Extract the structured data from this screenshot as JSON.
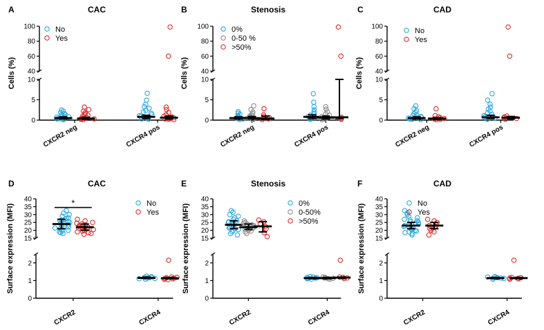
{
  "chart_data": [
    {
      "type": "scatter",
      "panel_letter": "A",
      "title": "CAC",
      "ylabel": "Cells  (%)",
      "categories": [
        "CXCR2 neg",
        "CXCR4 pos"
      ],
      "y_break": {
        "lower": [
          0,
          10
        ],
        "upper": [
          40,
          100
        ]
      },
      "lower_ticks": [
        "0",
        "5",
        "10"
      ],
      "upper_ticks": [
        "40",
        "60",
        "80",
        "100"
      ],
      "series": [
        {
          "name": "No",
          "color": "#29a8e0",
          "values": [
            [
              0.1,
              0.2,
              0.3,
              0.4,
              0.5,
              0.6,
              0.7,
              0.8,
              0.9,
              1.0,
              1.2,
              1.4,
              1.6,
              1.9,
              2.2,
              2.5
            ],
            [
              0.2,
              0.3,
              0.5,
              0.7,
              0.9,
              1.1,
              1.4,
              1.7,
              2.0,
              2.4,
              2.9,
              3.3,
              3.9,
              4.9,
              6.6
            ]
          ],
          "median": [
            0.5,
            0.8
          ],
          "iqr": [
            [
              0.3,
              0.8
            ],
            [
              0.4,
              1.2
            ]
          ]
        },
        {
          "name": "Yes",
          "color": "#e02a2a",
          "values": [
            [
              0.1,
              0.2,
              0.3,
              0.4,
              0.5,
              0.6,
              0.8,
              1.0,
              1.2,
              1.5,
              1.8,
              2.2,
              2.6,
              3.2
            ],
            [
              0.1,
              0.2,
              0.3,
              0.4,
              0.5,
              0.6,
              0.8,
              1.0,
              1.3,
              1.9,
              2.6,
              3.2,
              60,
              99
            ]
          ],
          "median": [
            0.4,
            0.6
          ],
          "iqr": [
            [
              0.2,
              0.7
            ],
            [
              0.3,
              1.0
            ]
          ]
        }
      ]
    },
    {
      "type": "scatter",
      "panel_letter": "B",
      "title": "Stenosis",
      "ylabel": "Cells  (%)",
      "categories": [
        "CXCR2 neg",
        "CXCR4 pos"
      ],
      "y_break": {
        "lower": [
          0,
          10
        ],
        "upper": [
          40,
          100
        ]
      },
      "lower_ticks": [
        "0",
        "5",
        "10"
      ],
      "upper_ticks": [
        "40",
        "60",
        "80",
        "100"
      ],
      "series": [
        {
          "name": "0%",
          "color": "#29a8e0",
          "values": [
            [
              0.1,
              0.3,
              0.5,
              0.7,
              0.9,
              1.1,
              1.4,
              1.7,
              2.1
            ],
            [
              0.2,
              0.4,
              0.6,
              0.9,
              1.2,
              1.6,
              2.0,
              2.5,
              3.3,
              4.4,
              6.5
            ]
          ],
          "median": [
            0.5,
            0.8
          ],
          "iqr": [
            [
              0.3,
              0.8
            ],
            [
              0.4,
              1.3
            ]
          ]
        },
        {
          "name": "0-50 %",
          "color": "#8c8c8c",
          "values": [
            [
              0.1,
              0.2,
              0.4,
              0.6,
              0.8,
              1.0,
              1.3,
              1.6,
              2.0,
              2.6,
              3.5
            ],
            [
              0.1,
              0.3,
              0.5,
              0.7,
              0.9,
              1.2,
              1.5,
              2.0,
              2.7,
              3.3
            ]
          ],
          "median": [
            0.5,
            0.6
          ],
          "iqr": [
            [
              0.3,
              0.9
            ],
            [
              0.3,
              1.0
            ]
          ]
        },
        {
          "name": ">50%",
          "color": "#e02a2a",
          "values": [
            [
              0.1,
              0.3,
              0.6,
              0.9,
              1.3,
              2.8
            ],
            [
              0.2,
              0.4,
              0.7,
              60,
              99
            ]
          ],
          "median": [
            0.4,
            0.7
          ],
          "iqr": [
            [
              0.2,
              1.0
            ],
            [
              0.4,
              10
            ]
          ]
        }
      ]
    },
    {
      "type": "scatter",
      "panel_letter": "C",
      "title": "CAD",
      "ylabel": "Cells  (%)",
      "categories": [
        "CXCR2 neg",
        "CXCR4 pos"
      ],
      "y_break": {
        "lower": [
          0,
          10
        ],
        "upper": [
          40,
          100
        ]
      },
      "lower_ticks": [
        "0",
        "5",
        "10"
      ],
      "upper_ticks": [
        "40",
        "60",
        "80",
        "100"
      ],
      "series": [
        {
          "name": "No",
          "color": "#29a8e0",
          "values": [
            [
              0.1,
              0.2,
              0.3,
              0.4,
              0.5,
              0.6,
              0.7,
              0.9,
              1.1,
              1.3,
              1.6,
              1.9,
              2.3,
              2.8,
              3.5
            ],
            [
              0.2,
              0.3,
              0.5,
              0.7,
              0.9,
              1.1,
              1.4,
              1.8,
              2.2,
              2.7,
              3.2,
              3.9,
              4.9,
              6.5
            ]
          ],
          "median": [
            0.5,
            0.7
          ],
          "iqr": [
            [
              0.3,
              0.8
            ],
            [
              0.4,
              1.2
            ]
          ]
        },
        {
          "name": "Yes",
          "color": "#e02a2a",
          "values": [
            [
              0.1,
              0.2,
              0.3,
              0.4,
              0.6,
              0.8,
              1.1,
              2.8
            ],
            [
              0.2,
              0.4,
              0.6,
              0.8,
              1.0,
              60,
              99
            ]
          ],
          "median": [
            0.4,
            0.6
          ],
          "iqr": [
            [
              0.2,
              0.6
            ],
            [
              0.3,
              0.9
            ]
          ]
        }
      ]
    },
    {
      "type": "scatter",
      "panel_letter": "D",
      "title": "CAC",
      "ylabel": "Surface expression (MFI)",
      "categories": [
        "CXCR2",
        "CXCR4"
      ],
      "y_break": {
        "lower": [
          0,
          2.5
        ],
        "upper": [
          15,
          40
        ]
      },
      "lower_ticks": [
        "0",
        "1",
        "2"
      ],
      "upper_ticks": [
        "15",
        "20",
        "25",
        "30",
        "35",
        "40"
      ],
      "significance": "*",
      "series": [
        {
          "name": "No",
          "color": "#29a8e0",
          "values": [
            [
              18,
              18.5,
              19,
              19.5,
              20,
              20.5,
              21,
              21.5,
              22,
              22.5,
              23,
              23.5,
              24,
              24.5,
              25,
              25.5,
              26,
              26.5,
              27,
              27.5,
              28,
              29,
              30,
              31,
              32.5
            ],
            [
              1.08,
              1.1,
              1.12,
              1.14,
              1.16,
              1.18,
              1.2,
              1.22,
              1.25
            ]
          ],
          "median": [
            24,
            1.15
          ],
          "iqr": [
            [
              21,
              27
            ],
            [
              1.12,
              1.2
            ]
          ]
        },
        {
          "name": "Yes",
          "color": "#e02a2a",
          "values": [
            [
              17.5,
              18,
              18.5,
              19,
              19.5,
              20,
              20.5,
              21,
              21.5,
              22,
              22.5,
              23,
              23.5,
              24,
              24.5,
              25,
              26,
              27
            ],
            [
              1.05,
              1.08,
              1.1,
              1.12,
              1.14,
              1.16,
              1.18,
              1.2,
              2.15
            ]
          ],
          "median": [
            22,
            1.13
          ],
          "iqr": [
            [
              20,
              24
            ],
            [
              1.1,
              1.18
            ]
          ]
        }
      ]
    },
    {
      "type": "scatter",
      "panel_letter": "E",
      "title": "Stenosis",
      "ylabel": "Surface expression (MFI)",
      "categories": [
        "CXCR2",
        "CXCR4"
      ],
      "y_break": {
        "lower": [
          0,
          2.5
        ],
        "upper": [
          15,
          40
        ]
      },
      "lower_ticks": [
        "0",
        "1",
        "2"
      ],
      "upper_ticks": [
        "15",
        "20",
        "25",
        "30",
        "35",
        "40"
      ],
      "series": [
        {
          "name": "0%",
          "color": "#29a8e0",
          "values": [
            [
              17,
              18,
              19,
              20,
              20.5,
              21,
              21.5,
              22,
              22.5,
              23,
              23.5,
              24,
              24.5,
              25,
              25.5,
              26,
              27,
              28,
              29,
              30,
              31.5,
              32.5
            ],
            [
              1.08,
              1.1,
              1.12,
              1.14,
              1.16,
              1.18,
              1.2,
              1.23
            ]
          ],
          "median": [
            23.5,
            1.14
          ],
          "iqr": [
            [
              21,
              26
            ],
            [
              1.1,
              1.18
            ]
          ]
        },
        {
          "name": "0-50%",
          "color": "#8c8c8c",
          "values": [
            [
              18,
              19,
              19.5,
              20,
              20.5,
              21,
              21.5,
              22,
              22.5,
              23,
              23.5,
              24,
              24.5,
              25,
              26
            ],
            [
              1.08,
              1.1,
              1.12,
              1.14,
              1.16,
              1.18,
              1.2
            ]
          ],
          "median": [
            22,
            1.14
          ],
          "iqr": [
            [
              20.5,
              24
            ],
            [
              1.1,
              1.18
            ]
          ]
        },
        {
          "name": ">50%",
          "color": "#e02a2a",
          "values": [
            [
              16,
              18.5,
              21,
              22.5,
              24,
              25.5,
              26.5
            ],
            [
              1.12,
              1.15,
              1.18,
              1.2,
              2.15
            ]
          ],
          "median": [
            22.5,
            1.17
          ],
          "iqr": [
            [
              19,
              25.5
            ],
            [
              1.13,
              1.2
            ]
          ]
        }
      ]
    },
    {
      "type": "scatter",
      "panel_letter": "F",
      "title": "CAD",
      "ylabel": "Surface expression (MFI)",
      "categories": [
        "CXCR2",
        "CXCR4"
      ],
      "y_break": {
        "lower": [
          0,
          2.5
        ],
        "upper": [
          15,
          40
        ]
      },
      "lower_ticks": [
        "0",
        "1",
        "2"
      ],
      "upper_ticks": [
        "15",
        "20",
        "25",
        "30",
        "35",
        "40"
      ],
      "series": [
        {
          "name": "No",
          "color": "#29a8e0",
          "values": [
            [
              17,
              18,
              18.5,
              19,
              19.5,
              20,
              20.5,
              21,
              21.5,
              22,
              22.5,
              23,
              23.5,
              24,
              24.5,
              25,
              25.5,
              26,
              26.5,
              27,
              28,
              29,
              30,
              31,
              32.5
            ],
            [
              1.08,
              1.1,
              1.12,
              1.14,
              1.16,
              1.18,
              1.2,
              1.23
            ]
          ],
          "median": [
            23,
            1.14
          ],
          "iqr": [
            [
              21,
              25
            ],
            [
              1.1,
              1.18
            ]
          ]
        },
        {
          "name": "Yes",
          "color": "#e02a2a",
          "values": [
            [
              17,
              19,
              20,
              21,
              22,
              22.5,
              23,
              24,
              25,
              26,
              27
            ],
            [
              1.08,
              1.1,
              1.12,
              1.14,
              1.16,
              1.18,
              2.15
            ]
          ],
          "median": [
            23,
            1.14
          ],
          "iqr": [
            [
              21,
              25
            ],
            [
              1.1,
              1.18
            ]
          ]
        }
      ]
    }
  ]
}
